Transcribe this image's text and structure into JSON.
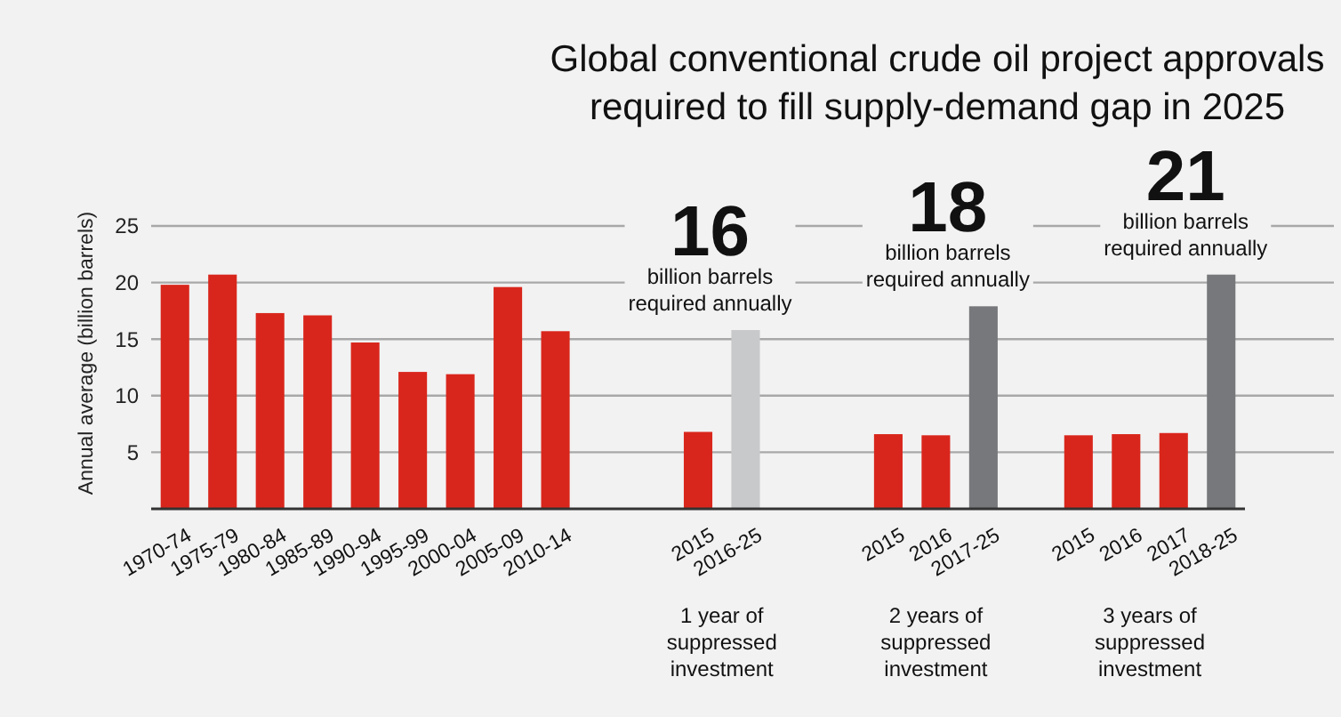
{
  "chart_data": {
    "type": "bar",
    "title": "Global conventional crude oil project approvals required to fill supply-demand gap in 2025",
    "ylabel": "Annual average (billion barrels)",
    "categories": [
      "1970-74",
      "1975-79",
      "1980-84",
      "1985-89",
      "1990-94",
      "1995-99",
      "2000-04",
      "2005-09",
      "2010-14",
      null,
      null,
      "2015",
      "2016-25",
      null,
      null,
      "2015",
      "2016",
      "2017-25",
      null,
      "2015",
      "2016",
      "2017",
      "2018-25"
    ],
    "values": [
      19.8,
      20.7,
      17.3,
      17.1,
      14.7,
      12.1,
      11.9,
      19.6,
      15.7,
      null,
      null,
      6.8,
      15.8,
      null,
      null,
      6.6,
      6.5,
      17.9,
      null,
      6.5,
      6.6,
      6.7,
      20.7
    ],
    "colors": [
      "#d9261c",
      "#d9261c",
      "#d9261c",
      "#d9261c",
      "#d9261c",
      "#d9261c",
      "#d9261c",
      "#d9261c",
      "#d9261c",
      null,
      null,
      "#d9261c",
      "#c8c9cb",
      null,
      null,
      "#d9261c",
      "#d9261c",
      "#77787b",
      null,
      "#d9261c",
      "#d9261c",
      "#d9261c",
      "#77787b"
    ],
    "ylim": [
      0,
      25
    ],
    "yticks": [
      5,
      10,
      15,
      20,
      25
    ],
    "grid": "y",
    "annotations": [
      "16",
      "billion barrels required annually",
      "1 year of suppressed investment",
      "18",
      "billion barrels required annually",
      "2 years of suppressed investment",
      "21",
      "billion barrels required annually",
      "3 years of suppressed investment"
    ]
  }
}
